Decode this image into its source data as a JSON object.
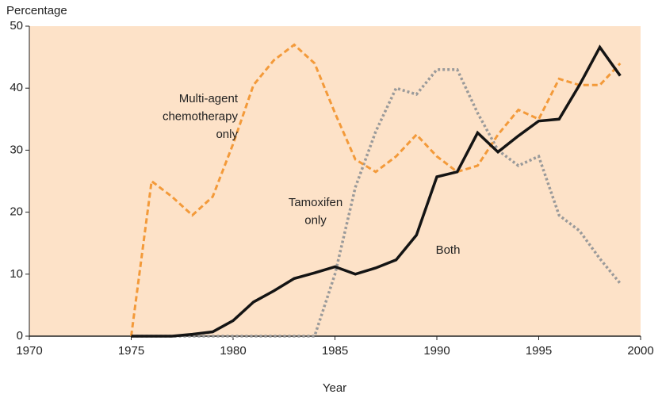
{
  "chart_data": {
    "type": "line",
    "y_label": "Percentage",
    "x_label": "Year",
    "x": [
      1975,
      1976,
      1977,
      1978,
      1979,
      1980,
      1981,
      1982,
      1983,
      1984,
      1985,
      1986,
      1987,
      1988,
      1989,
      1990,
      1991,
      1992,
      1993,
      1994,
      1995,
      1996,
      1997,
      1998,
      1999
    ],
    "series": [
      {
        "name": "Multi-agent chemotherapy only",
        "color": "#f39a3a",
        "dash": "dashed",
        "values": [
          0,
          25,
          22.5,
          19.5,
          22.5,
          31,
          40.5,
          44.5,
          47,
          44,
          36,
          28.5,
          26.5,
          29,
          32.5,
          29,
          26.5,
          27.5,
          32.5,
          36.5,
          35,
          41.5,
          40.5,
          40.5,
          44
        ]
      },
      {
        "name": "Tamoxifen only",
        "color": "#9a9a9a",
        "dash": "dotted",
        "values": [
          0,
          0,
          0,
          0,
          0,
          0,
          0,
          0,
          0,
          0,
          10,
          24,
          33,
          40,
          39,
          43,
          43,
          36,
          30,
          27.5,
          29,
          19.5,
          17,
          12.5,
          8.5
        ]
      },
      {
        "name": "Both",
        "color": "#141414",
        "dash": "solid",
        "values": [
          0,
          0,
          0,
          0.3,
          0.7,
          2.5,
          5.5,
          7.3,
          9.3,
          10.2,
          11.2,
          10,
          11,
          12.3,
          16.3,
          25.7,
          26.5,
          32.8,
          29.7,
          32.3,
          34.7,
          35,
          40.5,
          46.6,
          42
        ]
      }
    ],
    "annotations": [
      [
        "Multi-agent",
        "chemotherapy",
        "only"
      ],
      [
        "Tamoxifen",
        "only"
      ],
      [
        "Both"
      ]
    ],
    "xlim": [
      1970,
      2000
    ],
    "xticks": [
      1970,
      1975,
      1980,
      1985,
      1990,
      1995,
      2000
    ],
    "ylim": [
      0,
      50
    ],
    "yticks": [
      0,
      10,
      20,
      30,
      40,
      50
    ],
    "background": "#fde2c8"
  }
}
